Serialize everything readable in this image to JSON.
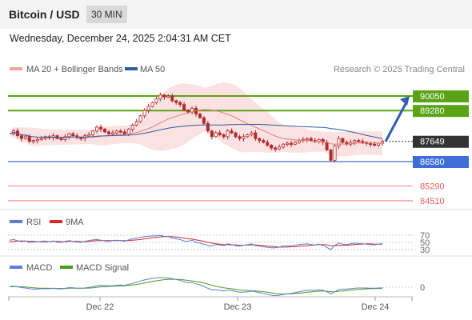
{
  "header": {
    "title": "Bitcoin / USD",
    "interval": "30 MIN",
    "datetime": "Wednesday, December 24, 2025 2:04:31 AM CET"
  },
  "main_legend": [
    {
      "label": "MA 20 + Bollinger Bands",
      "color": "#f4a3a3"
    },
    {
      "label": "MA 50",
      "color": "#2e5c9e"
    }
  ],
  "watermark": "Research © 2025 Trading Central",
  "colors": {
    "resistance": "#5aa317",
    "support": "#3f6fd6",
    "target": "#e85d5d",
    "candle": "#b02a2a",
    "bollinger_fill": "#fbe2e2",
    "ma20": "#e07c7c",
    "ma50": "#2e5c9e",
    "arrow": "#2e5ea8"
  },
  "price_scale": {
    "min": 84300,
    "max": 90400
  },
  "levels": [
    {
      "name": "resistance-2",
      "value": 90050,
      "label": "90050",
      "kind": "resistance"
    },
    {
      "name": "resistance-1",
      "value": 89280,
      "label": "89280",
      "kind": "resistance"
    },
    {
      "name": "last-price",
      "value": 87649,
      "label": "87649",
      "kind": "last"
    },
    {
      "name": "support-1",
      "value": 86580,
      "label": "86580",
      "kind": "support"
    },
    {
      "name": "target-1",
      "value": 85290,
      "label": "85290",
      "kind": "target"
    },
    {
      "name": "target-2",
      "value": 84510,
      "label": "84510",
      "kind": "target"
    }
  ],
  "arrow": {
    "from": 87649,
    "to": 90050
  },
  "rsi_panel": {
    "legend": [
      {
        "label": "RSI",
        "color": "#5b7fd6"
      },
      {
        "label": "9MA",
        "color": "#d12a2a"
      }
    ],
    "ticks": [
      "70",
      "50",
      "30"
    ],
    "range": [
      0,
      100
    ]
  },
  "macd_panel": {
    "legend": [
      {
        "label": "MACD",
        "color": "#5b7fd6"
      },
      {
        "label": "MACD Signal",
        "color": "#4a9a18"
      }
    ],
    "ticks": [
      "0"
    ]
  },
  "x_axis": {
    "labels": [
      "Dec 22",
      "Dec 23",
      "Dec 24"
    ]
  },
  "chart_data": {
    "type": "candlestick",
    "title": "Bitcoin / USD",
    "interval": "30 MIN",
    "x_labels": [
      "Dec 22",
      "Dec 23",
      "Dec 24"
    ],
    "price_range": [
      84300,
      90400
    ],
    "price_series": [
      88050,
      88200,
      87950,
      87800,
      87900,
      87650,
      87700,
      87750,
      87800,
      87900,
      87850,
      87950,
      87800,
      87750,
      87900,
      88050,
      87950,
      87850,
      87800,
      87950,
      88000,
      88200,
      88400,
      88300,
      88150,
      88050,
      88100,
      88200,
      88150,
      88050,
      88300,
      88500,
      88700,
      89000,
      89300,
      89500,
      89700,
      89900,
      90100,
      90000,
      90050,
      89800,
      89700,
      89600,
      89300,
      89200,
      89400,
      89100,
      88900,
      88600,
      88200,
      87900,
      88100,
      88000,
      87900,
      88200,
      88100,
      87900,
      87800,
      87900,
      88000,
      88100,
      87800,
      87700,
      87600,
      87450,
      87300,
      87250,
      87350,
      87500,
      87550,
      87500,
      87600,
      87700,
      87750,
      87800,
      87700,
      87650,
      87750,
      87600,
      87200,
      86650,
      87400,
      87800,
      87600,
      87500,
      87600,
      87700,
      87650,
      87600,
      87550,
      87500,
      87450,
      87550,
      87649
    ],
    "rsi_series": [
      56,
      58,
      55,
      52,
      54,
      50,
      51,
      52,
      53,
      54,
      52,
      54,
      51,
      50,
      53,
      55,
      53,
      51,
      50,
      53,
      55,
      57,
      58,
      56,
      54,
      53,
      55,
      56,
      55,
      53,
      57,
      60,
      62,
      64,
      66,
      67,
      68,
      68,
      69,
      67,
      66,
      62,
      60,
      58,
      54,
      53,
      56,
      50,
      48,
      45,
      42,
      40,
      44,
      43,
      41,
      46,
      44,
      41,
      40,
      42,
      44,
      46,
      41,
      40,
      38,
      36,
      35,
      35,
      37,
      40,
      41,
      40,
      42,
      44,
      45,
      46,
      44,
      43,
      45,
      42,
      36,
      30,
      42,
      48,
      45,
      44,
      46,
      48,
      47,
      46,
      45,
      44,
      43,
      45,
      47
    ],
    "rsi_ma9_series": [
      52,
      53,
      54,
      54,
      54,
      53,
      53,
      52,
      52,
      52,
      52,
      53,
      53,
      52,
      52,
      53,
      53,
      53,
      52,
      52,
      53,
      54,
      55,
      55,
      55,
      55,
      55,
      55,
      55,
      55,
      55,
      56,
      57,
      58,
      60,
      61,
      63,
      64,
      65,
      66,
      66,
      66,
      65,
      64,
      62,
      60,
      59,
      57,
      55,
      53,
      50,
      48,
      46,
      45,
      44,
      44,
      43,
      43,
      42,
      42,
      43,
      43,
      43,
      42,
      41,
      40,
      39,
      38,
      37,
      37,
      37,
      38,
      38,
      39,
      40,
      41,
      42,
      43,
      44,
      44,
      43,
      41,
      41,
      42,
      42,
      42,
      43,
      44,
      45,
      45,
      46,
      46,
      45,
      45,
      45
    ],
    "macd_series": [
      20,
      30,
      10,
      -10,
      -20,
      -40,
      -50,
      -45,
      -40,
      -35,
      -40,
      -30,
      -40,
      -45,
      -30,
      -10,
      -15,
      -25,
      -30,
      -20,
      -5,
      15,
      40,
      45,
      40,
      35,
      40,
      50,
      55,
      50,
      70,
      100,
      130,
      160,
      190,
      210,
      230,
      240,
      250,
      245,
      240,
      220,
      200,
      180,
      140,
      120,
      120,
      90,
      60,
      20,
      -30,
      -70,
      -70,
      -80,
      -100,
      -80,
      -90,
      -110,
      -130,
      -130,
      -120,
      -100,
      -120,
      -140,
      -160,
      -190,
      -210,
      -220,
      -210,
      -190,
      -170,
      -160,
      -140,
      -120,
      -100,
      -80,
      -80,
      -80,
      -70,
      -80,
      -120,
      -170,
      -120,
      -60,
      -50,
      -50,
      -40,
      -25,
      -20,
      -20,
      -20,
      -25,
      -25,
      -20,
      -15
    ],
    "macd_signal_series": [
      10,
      15,
      14,
      10,
      4,
      -5,
      -15,
      -22,
      -26,
      -28,
      -30,
      -30,
      -32,
      -34,
      -33,
      -28,
      -26,
      -26,
      -27,
      -26,
      -22,
      -14,
      -3,
      8,
      15,
      20,
      25,
      30,
      35,
      38,
      45,
      56,
      71,
      89,
      109,
      129,
      149,
      167,
      184,
      196,
      205,
      208,
      206,
      201,
      189,
      175,
      164,
      149,
      131,
      109,
      81,
      51,
      27,
      6,
      -16,
      -29,
      -41,
      -55,
      -70,
      -82,
      -90,
      -92,
      -98,
      -106,
      -117,
      -132,
      -147,
      -162,
      -171,
      -175,
      -174,
      -171,
      -165,
      -156,
      -145,
      -132,
      -122,
      -113,
      -105,
      -100,
      -104,
      -117,
      -118,
      -107,
      -96,
      -87,
      -77,
      -67,
      -57,
      -50,
      -44,
      -40,
      -37,
      -34,
      -30
    ]
  }
}
